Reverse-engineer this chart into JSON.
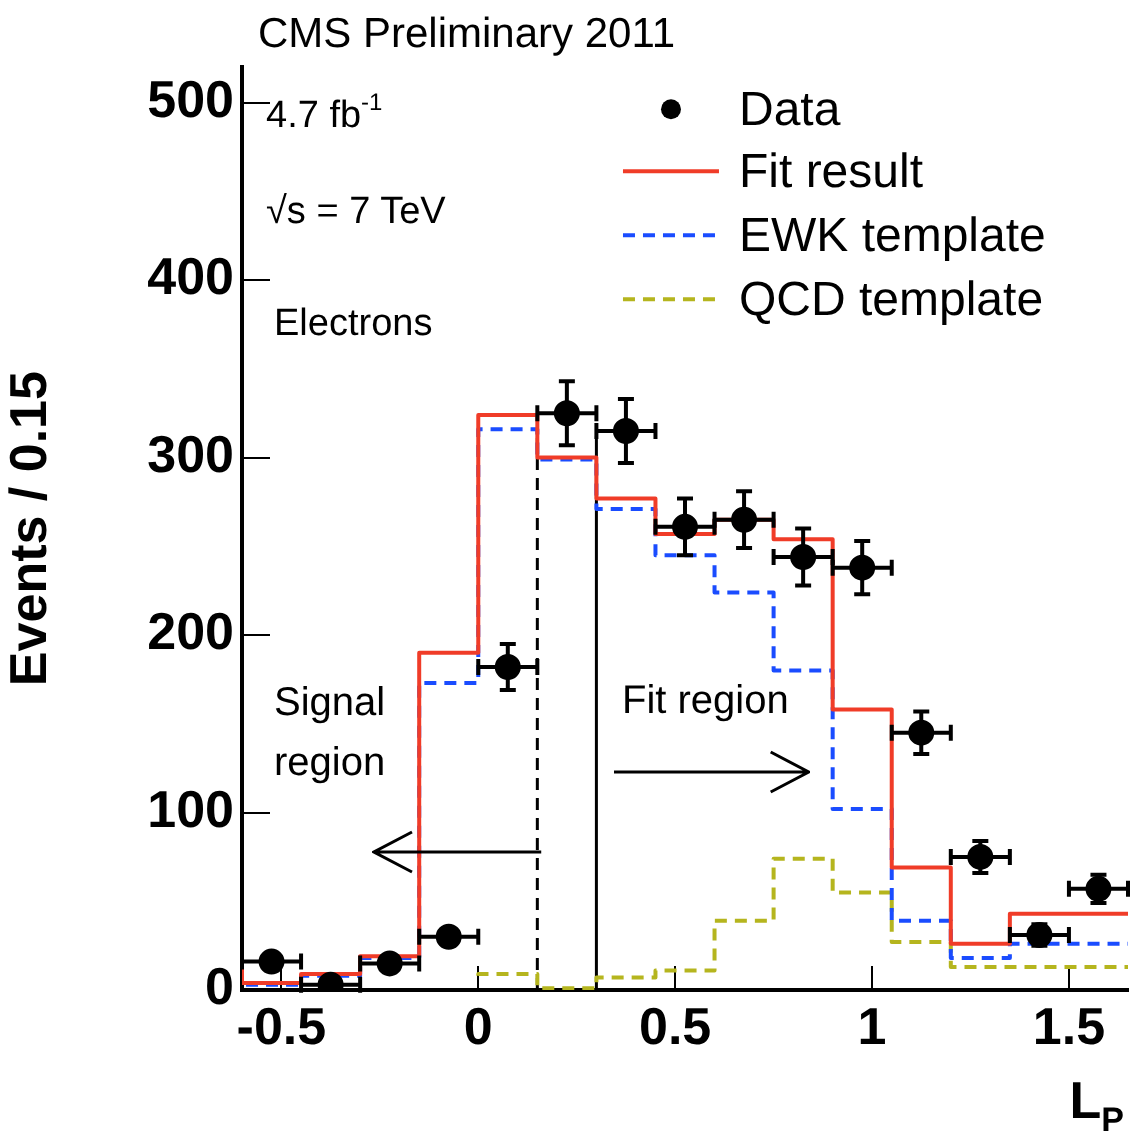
{
  "chart_data": {
    "type": "step",
    "title": "CMS Preliminary 2011",
    "xlabel": "L$_{P}$",
    "ylabel": "Events / 0.15",
    "annotations": [
      "4.7 fb$^{-1}$",
      "√s = 7 TeV",
      "Electrons",
      "Signal region",
      "Fit region"
    ],
    "x": [
      -0.6,
      -0.45,
      -0.3,
      -0.15,
      0,
      0.15,
      0.3,
      0.45,
      0.6,
      0.75,
      0.9,
      1.05,
      1.2,
      1.35,
      1.5,
      1.65
    ],
    "xlim": [
      -0.6,
      1.65
    ],
    "xticks": [
      -0.5,
      0,
      0.5,
      1,
      1.5
    ],
    "ylim": [
      0,
      520
    ],
    "yticks": [
      0,
      100,
      200,
      300,
      400,
      500
    ],
    "legend": "top right",
    "ref_lines": [
      {
        "axis": "x",
        "value": 0.15,
        "color": "#000000",
        "line_style": "dashed"
      },
      {
        "axis": "x",
        "value": 0.3,
        "color": "#000000",
        "line_style": "solid"
      }
    ],
    "series": [
      {
        "name": "Data",
        "type": "scatter",
        "color": "#000000",
        "marker": "circle",
        "x": [
          -0.525,
          -0.375,
          -0.225,
          -0.075,
          0.075,
          0.225,
          0.375,
          0.525,
          0.675,
          0.825,
          0.975,
          1.125,
          1.275,
          1.425,
          1.575
        ],
        "values": [
          16,
          3,
          15,
          30,
          182,
          325,
          315,
          261,
          265,
          244,
          238,
          145,
          75,
          31,
          57
        ],
        "errors": [
          null,
          null,
          null,
          null,
          13,
          18,
          18,
          16,
          16,
          16,
          15,
          12,
          9,
          6,
          8
        ],
        "xerrors": [
          0.075,
          0.075,
          0.075,
          0.075,
          0.075,
          0.075,
          0.075,
          0.075,
          0.075,
          0.075,
          0.075,
          0.075,
          0.075,
          0.075,
          0.075
        ]
      },
      {
        "name": "Fit result",
        "type": "step",
        "color": "#f03c28",
        "line_style": "solid",
        "values": [
          15,
          4,
          9,
          19,
          190,
          324,
          300,
          277,
          257,
          265,
          254,
          158,
          69,
          26,
          43,
          43
        ]
      },
      {
        "name": "EWK template",
        "type": "step",
        "color": "#1a4cff",
        "line_style": "dashed",
        "values": [
          12,
          3,
          8,
          18,
          173,
          316,
          299,
          271,
          245,
          224,
          180,
          102,
          39,
          18,
          26,
          26
        ]
      },
      {
        "name": "QCD template",
        "type": "step",
        "color": "#b5b51e",
        "line_style": "dashed",
        "values": [
          null,
          null,
          null,
          null,
          8,
          9,
          1,
          7,
          11,
          39,
          74,
          55,
          27,
          13,
          13,
          13
        ]
      }
    ]
  }
}
